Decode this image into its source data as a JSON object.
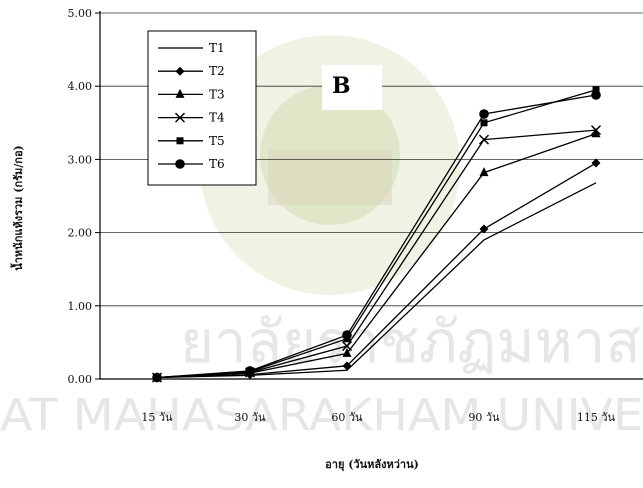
{
  "chart_data": {
    "type": "line",
    "panel_label": "B",
    "categories": [
      "15 วัน",
      "30 วัน",
      "60 วัน",
      "90 วัน",
      "115 วัน"
    ],
    "ylabel": "น้ำหนักแห้งรวม (กรัม/กอ)",
    "xlabel": "อายุ (วันหลังหว่าน)",
    "ylim": [
      0,
      5
    ],
    "yticks": [
      "0.00",
      "1.00",
      "2.00",
      "3.00",
      "4.00",
      "5.00"
    ],
    "grid": true,
    "legend_position": "top-left",
    "series": [
      {
        "name": "T1",
        "marker": "none",
        "values": [
          0.02,
          0.05,
          0.12,
          1.9,
          2.68
        ]
      },
      {
        "name": "T2",
        "marker": "diamond",
        "values": [
          0.02,
          0.06,
          0.18,
          2.05,
          2.95
        ]
      },
      {
        "name": "T3",
        "marker": "triangle",
        "values": [
          0.02,
          0.08,
          0.35,
          2.82,
          3.35
        ]
      },
      {
        "name": "T4",
        "marker": "x",
        "values": [
          0.02,
          0.09,
          0.45,
          3.27,
          3.4
        ]
      },
      {
        "name": "T5",
        "marker": "square",
        "values": [
          0.02,
          0.1,
          0.55,
          3.5,
          3.95
        ]
      },
      {
        "name": "T6",
        "marker": "circle",
        "values": [
          0.02,
          0.11,
          0.6,
          3.62,
          3.88
        ]
      }
    ]
  },
  "watermark": {
    "line1": "ยาลัยราชภัฏมหาสาร",
    "line2": "AT MAHASARAKHAM UNIVE"
  }
}
